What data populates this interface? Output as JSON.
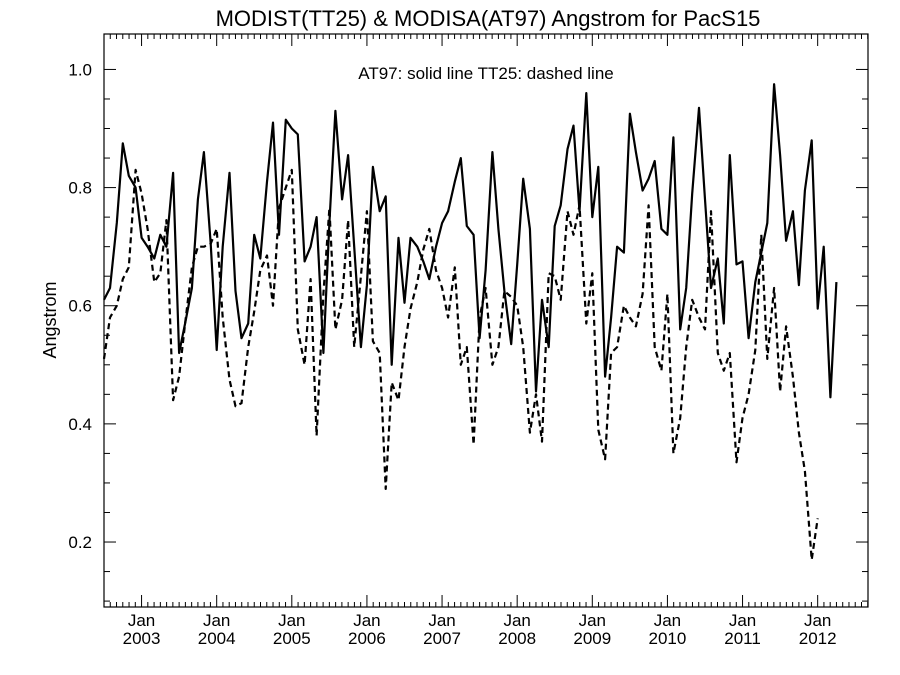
{
  "chart_data": {
    "type": "line",
    "title": "MODIST(TT25) & MODISA(AT97)  Angstrom for PacS15",
    "ylabel": "Angstrom",
    "xlabel": "",
    "annotation": "AT97: solid line   TT25: dashed line",
    "xlim": [
      2002.5,
      2012.67
    ],
    "ylim": [
      0.09,
      1.06
    ],
    "yticks": [
      {
        "value": 0.2,
        "label": "0.2"
      },
      {
        "value": 0.4,
        "label": "0.4"
      },
      {
        "value": 0.6,
        "label": "0.6"
      },
      {
        "value": 0.8,
        "label": "0.8"
      },
      {
        "value": 1.0,
        "label": "1.0"
      }
    ],
    "xticks": [
      {
        "value": 2003.0,
        "month": "Jan",
        "year": "2003"
      },
      {
        "value": 2004.0,
        "month": "Jan",
        "year": "2004"
      },
      {
        "value": 2005.0,
        "month": "Jan",
        "year": "2005"
      },
      {
        "value": 2006.0,
        "month": "Jan",
        "year": "2006"
      },
      {
        "value": 2007.0,
        "month": "Jan",
        "year": "2007"
      },
      {
        "value": 2008.0,
        "month": "Jan",
        "year": "2008"
      },
      {
        "value": 2009.0,
        "month": "Jan",
        "year": "2009"
      },
      {
        "value": 2010.0,
        "month": "Jan",
        "year": "2010"
      },
      {
        "value": 2011.0,
        "month": "Jan",
        "year": "2011"
      },
      {
        "value": 2012.0,
        "month": "Jan",
        "year": "2012"
      }
    ],
    "series": [
      {
        "name": "AT97",
        "style": "solid",
        "color": "#000000",
        "points": [
          [
            2002.5,
            0.61
          ],
          [
            2002.58,
            0.63
          ],
          [
            2002.67,
            0.74
          ],
          [
            2002.75,
            0.875
          ],
          [
            2002.83,
            0.82
          ],
          [
            2002.92,
            0.8
          ],
          [
            2003.0,
            0.715
          ],
          [
            2003.08,
            0.7
          ],
          [
            2003.17,
            0.68
          ],
          [
            2003.25,
            0.72
          ],
          [
            2003.33,
            0.7
          ],
          [
            2003.42,
            0.825
          ],
          [
            2003.5,
            0.52
          ],
          [
            2003.58,
            0.57
          ],
          [
            2003.67,
            0.63
          ],
          [
            2003.75,
            0.78
          ],
          [
            2003.83,
            0.86
          ],
          [
            2003.92,
            0.705
          ],
          [
            2004.0,
            0.525
          ],
          [
            2004.08,
            0.7
          ],
          [
            2004.17,
            0.825
          ],
          [
            2004.25,
            0.625
          ],
          [
            2004.33,
            0.545
          ],
          [
            2004.42,
            0.57
          ],
          [
            2004.5,
            0.72
          ],
          [
            2004.58,
            0.68
          ],
          [
            2004.67,
            0.81
          ],
          [
            2004.75,
            0.91
          ],
          [
            2004.83,
            0.72
          ],
          [
            2004.92,
            0.915
          ],
          [
            2005.0,
            0.9
          ],
          [
            2005.08,
            0.89
          ],
          [
            2005.17,
            0.675
          ],
          [
            2005.25,
            0.7
          ],
          [
            2005.33,
            0.75
          ],
          [
            2005.42,
            0.52
          ],
          [
            2005.5,
            0.74
          ],
          [
            2005.58,
            0.93
          ],
          [
            2005.67,
            0.78
          ],
          [
            2005.75,
            0.855
          ],
          [
            2005.83,
            0.7
          ],
          [
            2005.92,
            0.53
          ],
          [
            2006.0,
            0.635
          ],
          [
            2006.08,
            0.835
          ],
          [
            2006.17,
            0.76
          ],
          [
            2006.25,
            0.785
          ],
          [
            2006.33,
            0.5
          ],
          [
            2006.42,
            0.715
          ],
          [
            2006.5,
            0.605
          ],
          [
            2006.58,
            0.715
          ],
          [
            2006.67,
            0.7
          ],
          [
            2006.75,
            0.675
          ],
          [
            2006.83,
            0.645
          ],
          [
            2006.92,
            0.7
          ],
          [
            2007.0,
            0.74
          ],
          [
            2007.08,
            0.76
          ],
          [
            2007.17,
            0.81
          ],
          [
            2007.25,
            0.85
          ],
          [
            2007.33,
            0.735
          ],
          [
            2007.42,
            0.72
          ],
          [
            2007.5,
            0.545
          ],
          [
            2007.58,
            0.66
          ],
          [
            2007.67,
            0.86
          ],
          [
            2007.75,
            0.73
          ],
          [
            2007.83,
            0.625
          ],
          [
            2007.92,
            0.535
          ],
          [
            2008.0,
            0.67
          ],
          [
            2008.08,
            0.815
          ],
          [
            2008.17,
            0.73
          ],
          [
            2008.25,
            0.455
          ],
          [
            2008.33,
            0.61
          ],
          [
            2008.42,
            0.53
          ],
          [
            2008.5,
            0.735
          ],
          [
            2008.58,
            0.77
          ],
          [
            2008.67,
            0.865
          ],
          [
            2008.75,
            0.905
          ],
          [
            2008.83,
            0.76
          ],
          [
            2008.92,
            0.96
          ],
          [
            2009.0,
            0.75
          ],
          [
            2009.08,
            0.835
          ],
          [
            2009.17,
            0.48
          ],
          [
            2009.25,
            0.58
          ],
          [
            2009.33,
            0.7
          ],
          [
            2009.42,
            0.69
          ],
          [
            2009.5,
            0.925
          ],
          [
            2009.58,
            0.86
          ],
          [
            2009.67,
            0.795
          ],
          [
            2009.75,
            0.815
          ],
          [
            2009.83,
            0.845
          ],
          [
            2009.92,
            0.73
          ],
          [
            2010.0,
            0.72
          ],
          [
            2010.08,
            0.885
          ],
          [
            2010.17,
            0.56
          ],
          [
            2010.25,
            0.63
          ],
          [
            2010.33,
            0.79
          ],
          [
            2010.42,
            0.935
          ],
          [
            2010.5,
            0.78
          ],
          [
            2010.58,
            0.63
          ],
          [
            2010.67,
            0.68
          ],
          [
            2010.75,
            0.57
          ],
          [
            2010.83,
            0.855
          ],
          [
            2010.92,
            0.67
          ],
          [
            2011.0,
            0.675
          ],
          [
            2011.08,
            0.545
          ],
          [
            2011.17,
            0.64
          ],
          [
            2011.25,
            0.69
          ],
          [
            2011.33,
            0.74
          ],
          [
            2011.42,
            0.975
          ],
          [
            2011.5,
            0.855
          ],
          [
            2011.58,
            0.71
          ],
          [
            2011.67,
            0.76
          ],
          [
            2011.75,
            0.635
          ],
          [
            2011.83,
            0.795
          ],
          [
            2011.92,
            0.88
          ],
          [
            2012.0,
            0.595
          ],
          [
            2012.08,
            0.7
          ],
          [
            2012.17,
            0.445
          ],
          [
            2012.25,
            0.64
          ]
        ]
      },
      {
        "name": "TT25",
        "style": "dashed",
        "color": "#000000",
        "points": [
          [
            2002.5,
            0.51
          ],
          [
            2002.58,
            0.58
          ],
          [
            2002.67,
            0.6
          ],
          [
            2002.75,
            0.645
          ],
          [
            2002.83,
            0.665
          ],
          [
            2002.92,
            0.83
          ],
          [
            2003.0,
            0.79
          ],
          [
            2003.08,
            0.73
          ],
          [
            2003.17,
            0.64
          ],
          [
            2003.25,
            0.655
          ],
          [
            2003.33,
            0.745
          ],
          [
            2003.42,
            0.44
          ],
          [
            2003.5,
            0.48
          ],
          [
            2003.58,
            0.57
          ],
          [
            2003.67,
            0.665
          ],
          [
            2003.75,
            0.7
          ],
          [
            2003.83,
            0.7
          ],
          [
            2003.92,
            0.705
          ],
          [
            2004.0,
            0.73
          ],
          [
            2004.08,
            0.58
          ],
          [
            2004.17,
            0.475
          ],
          [
            2004.25,
            0.43
          ],
          [
            2004.33,
            0.435
          ],
          [
            2004.42,
            0.53
          ],
          [
            2004.5,
            0.59
          ],
          [
            2004.58,
            0.66
          ],
          [
            2004.67,
            0.685
          ],
          [
            2004.75,
            0.6
          ],
          [
            2004.83,
            0.765
          ],
          [
            2004.92,
            0.8
          ],
          [
            2005.0,
            0.83
          ],
          [
            2005.08,
            0.56
          ],
          [
            2005.17,
            0.5
          ],
          [
            2005.25,
            0.645
          ],
          [
            2005.33,
            0.38
          ],
          [
            2005.42,
            0.62
          ],
          [
            2005.5,
            0.765
          ],
          [
            2005.58,
            0.56
          ],
          [
            2005.67,
            0.61
          ],
          [
            2005.75,
            0.745
          ],
          [
            2005.83,
            0.53
          ],
          [
            2005.92,
            0.65
          ],
          [
            2006.0,
            0.76
          ],
          [
            2006.08,
            0.54
          ],
          [
            2006.17,
            0.52
          ],
          [
            2006.25,
            0.29
          ],
          [
            2006.33,
            0.47
          ],
          [
            2006.42,
            0.44
          ],
          [
            2006.5,
            0.53
          ],
          [
            2006.58,
            0.595
          ],
          [
            2006.67,
            0.64
          ],
          [
            2006.75,
            0.695
          ],
          [
            2006.83,
            0.73
          ],
          [
            2006.92,
            0.66
          ],
          [
            2007.0,
            0.63
          ],
          [
            2007.08,
            0.58
          ],
          [
            2007.17,
            0.665
          ],
          [
            2007.25,
            0.5
          ],
          [
            2007.33,
            0.53
          ],
          [
            2007.42,
            0.365
          ],
          [
            2007.5,
            0.58
          ],
          [
            2007.58,
            0.63
          ],
          [
            2007.67,
            0.5
          ],
          [
            2007.75,
            0.53
          ],
          [
            2007.83,
            0.625
          ],
          [
            2007.92,
            0.615
          ],
          [
            2008.0,
            0.6
          ],
          [
            2008.08,
            0.53
          ],
          [
            2008.17,
            0.385
          ],
          [
            2008.25,
            0.45
          ],
          [
            2008.33,
            0.37
          ],
          [
            2008.42,
            0.655
          ],
          [
            2008.5,
            0.65
          ],
          [
            2008.58,
            0.61
          ],
          [
            2008.67,
            0.76
          ],
          [
            2008.75,
            0.72
          ],
          [
            2008.83,
            0.77
          ],
          [
            2008.92,
            0.57
          ],
          [
            2009.0,
            0.655
          ],
          [
            2009.08,
            0.39
          ],
          [
            2009.17,
            0.34
          ],
          [
            2009.25,
            0.52
          ],
          [
            2009.33,
            0.53
          ],
          [
            2009.42,
            0.6
          ],
          [
            2009.5,
            0.58
          ],
          [
            2009.58,
            0.565
          ],
          [
            2009.67,
            0.62
          ],
          [
            2009.75,
            0.77
          ],
          [
            2009.83,
            0.53
          ],
          [
            2009.92,
            0.49
          ],
          [
            2010.0,
            0.62
          ],
          [
            2010.08,
            0.35
          ],
          [
            2010.17,
            0.41
          ],
          [
            2010.25,
            0.53
          ],
          [
            2010.33,
            0.61
          ],
          [
            2010.42,
            0.58
          ],
          [
            2010.5,
            0.56
          ],
          [
            2010.58,
            0.76
          ],
          [
            2010.67,
            0.52
          ],
          [
            2010.75,
            0.49
          ],
          [
            2010.83,
            0.52
          ],
          [
            2010.92,
            0.335
          ],
          [
            2011.0,
            0.41
          ],
          [
            2011.08,
            0.45
          ],
          [
            2011.17,
            0.525
          ],
          [
            2011.25,
            0.72
          ],
          [
            2011.33,
            0.51
          ],
          [
            2011.42,
            0.63
          ],
          [
            2011.5,
            0.455
          ],
          [
            2011.58,
            0.565
          ],
          [
            2011.67,
            0.48
          ],
          [
            2011.75,
            0.385
          ],
          [
            2011.83,
            0.32
          ],
          [
            2011.92,
            0.17
          ],
          [
            2012.0,
            0.24
          ]
        ]
      }
    ]
  }
}
